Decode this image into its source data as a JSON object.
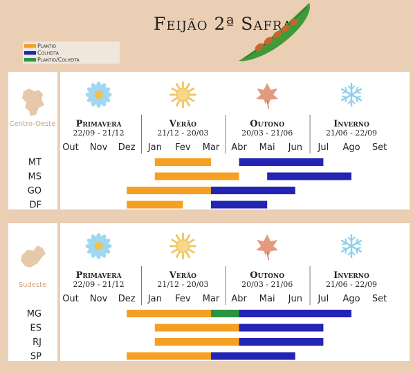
{
  "title": "Feijão 2ª Safra",
  "legend": {
    "items": [
      {
        "label": "Plantio",
        "color": "#f5a023"
      },
      {
        "label": "Colheita",
        "color": "#2323b4"
      },
      {
        "label": "Plantio/Colheita",
        "color": "#2a9440"
      }
    ]
  },
  "seasons": [
    {
      "name": "Primavera",
      "dates": "22/09 - 21/12",
      "icon": "flower-icon"
    },
    {
      "name": "Verão",
      "dates": "21/12 - 20/03",
      "icon": "sun-icon"
    },
    {
      "name": "Outono",
      "dates": "20/03 - 21/06",
      "icon": "leaf-icon"
    },
    {
      "name": "Inverno",
      "dates": "21/06 - 22/09",
      "icon": "snowflake-icon"
    }
  ],
  "months": [
    "Out",
    "Nov",
    "Dez",
    "Jan",
    "Fev",
    "Mar",
    "Abr",
    "Mai",
    "Jun",
    "Jul",
    "Ago",
    "Set"
  ],
  "chart_data": [
    {
      "type": "bar",
      "region": "Centro-Oeste",
      "states": [
        "MT",
        "MS",
        "GO",
        "DF"
      ],
      "bars": [
        {
          "state": "MT",
          "series": "Plantio",
          "start": "Jan",
          "end": "Mar"
        },
        {
          "state": "MT",
          "series": "Colheita",
          "start": "Abr",
          "end": "Jul"
        },
        {
          "state": "MS",
          "series": "Plantio",
          "start": "Jan",
          "end": "Abr"
        },
        {
          "state": "MS",
          "series": "Colheita",
          "start": "Mai",
          "end": "Ago"
        },
        {
          "state": "GO",
          "series": "Plantio",
          "start": "Dez",
          "end": "Mar"
        },
        {
          "state": "GO",
          "series": "Colheita",
          "start": "Mar",
          "end": "Jun"
        },
        {
          "state": "DF",
          "series": "Plantio",
          "start": "Dez",
          "end": "Fev"
        },
        {
          "state": "DF",
          "series": "Colheita",
          "start": "Mar",
          "end": "Mai"
        }
      ]
    },
    {
      "type": "bar",
      "region": "Sudeste",
      "states": [
        "MG",
        "ES",
        "RJ",
        "SP"
      ],
      "bars": [
        {
          "state": "MG",
          "series": "Plantio",
          "start": "Dez",
          "end": "Mar"
        },
        {
          "state": "MG",
          "series": "Plantio/Colheita",
          "start": "Mar",
          "end": "Abr"
        },
        {
          "state": "MG",
          "series": "Colheita",
          "start": "Abr",
          "end": "Ago"
        },
        {
          "state": "ES",
          "series": "Plantio",
          "start": "Jan",
          "end": "Abr"
        },
        {
          "state": "ES",
          "series": "Colheita",
          "start": "Abr",
          "end": "Jul"
        },
        {
          "state": "RJ",
          "series": "Plantio",
          "start": "Jan",
          "end": "Abr"
        },
        {
          "state": "RJ",
          "series": "Colheita",
          "start": "Abr",
          "end": "Jul"
        },
        {
          "state": "SP",
          "series": "Plantio",
          "start": "Dez",
          "end": "Mar"
        },
        {
          "state": "SP",
          "series": "Colheita",
          "start": "Mar",
          "end": "Jun"
        }
      ]
    }
  ]
}
